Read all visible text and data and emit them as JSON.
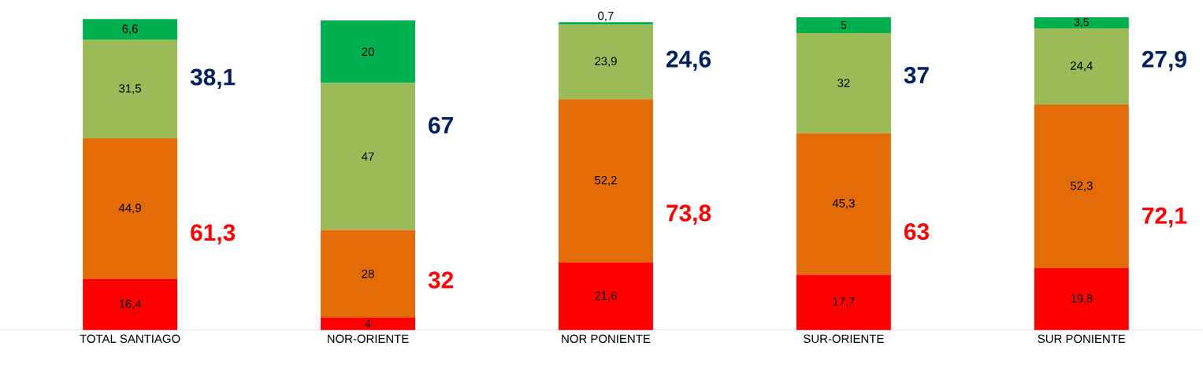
{
  "chart_data": {
    "type": "bar",
    "stacked": true,
    "categories": [
      "TOTAL SANTIAGO",
      "NOR-ORIENTE",
      "NOR PONIENTE",
      "SUR-ORIENTE",
      "SUR PONIENTE"
    ],
    "series": [
      {
        "color": "#ff0000",
        "values": [
          16.4,
          4,
          21.6,
          17.7,
          19.8
        ],
        "value_labels": [
          "16,4",
          "4",
          "21,6",
          "17,7",
          "19,8"
        ]
      },
      {
        "color": "#e36c09",
        "values": [
          44.9,
          28,
          52.2,
          45.3,
          52.3
        ],
        "value_labels": [
          "44,9",
          "28",
          "52,2",
          "45,3",
          "52,3"
        ]
      },
      {
        "color": "#9bbb59",
        "values": [
          31.5,
          47,
          23.9,
          32,
          24.4
        ],
        "value_labels": [
          "31,5",
          "47",
          "23,9",
          "32",
          "24,4"
        ]
      },
      {
        "color": "#00b050",
        "values": [
          6.6,
          20,
          0.7,
          5,
          3.5
        ],
        "value_labels": [
          "6,6",
          "20",
          "0,7",
          "5",
          "3,5"
        ]
      }
    ],
    "annotations": [
      "61,3",
      "38,1",
      "32",
      "67",
      "73,8",
      "24,6",
      "63",
      "37",
      "72,1",
      "27,9"
    ],
    "grid": false
  }
}
